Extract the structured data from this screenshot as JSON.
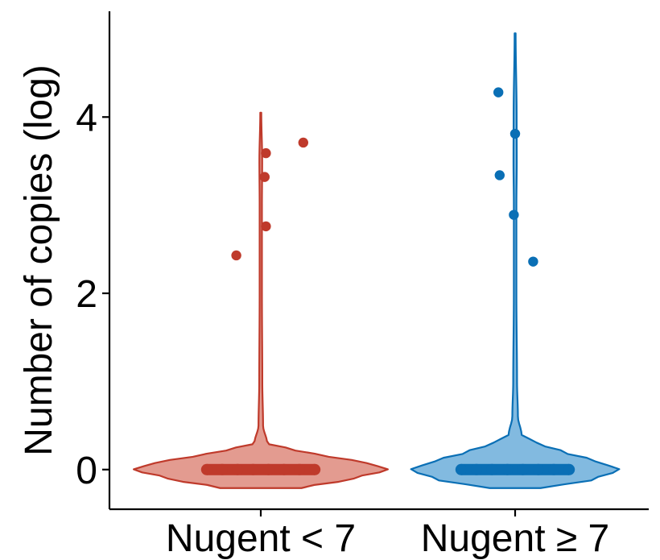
{
  "chart_data": {
    "type": "violin",
    "title": "",
    "xlabel": "",
    "ylabel": "Number of copies (log)",
    "ylim": [
      -0.45,
      5.2
    ],
    "y_ticks": [
      0,
      2,
      4
    ],
    "grid": false,
    "legend": "none",
    "categories": [
      "Nugent < 7",
      "Nugent ≥ 7"
    ],
    "series": [
      {
        "category": "Nugent < 7",
        "color": "#bf3a2b",
        "fill": "#e39b90",
        "violin_range": [
          -0.21,
          4.05
        ],
        "violin_profile": [
          [
            -0.21,
            0.32
          ],
          [
            -0.1,
            0.73
          ],
          [
            0.0,
            1.0
          ],
          [
            0.08,
            0.83
          ],
          [
            0.15,
            0.53
          ],
          [
            0.22,
            0.27
          ],
          [
            0.3,
            0.05
          ],
          [
            0.5,
            0.018
          ],
          [
            1.0,
            0.012
          ],
          [
            2.0,
            0.009
          ],
          [
            3.0,
            0.009
          ],
          [
            3.5,
            0.011
          ],
          [
            4.05,
            0.004
          ]
        ],
        "points": [
          {
            "y": 0.0,
            "jitter": -0.42
          },
          {
            "y": 0.0,
            "jitter": -0.3
          },
          {
            "y": 0.0,
            "jitter": -0.18
          },
          {
            "y": 0.0,
            "jitter": -0.06
          },
          {
            "y": 0.0,
            "jitter": 0.06
          },
          {
            "y": 0.0,
            "jitter": 0.18
          },
          {
            "y": 0.0,
            "jitter": 0.3
          },
          {
            "y": 0.0,
            "jitter": 0.42
          },
          {
            "y": 2.43,
            "jitter": -0.19
          },
          {
            "y": 2.76,
            "jitter": 0.04
          },
          {
            "y": 3.32,
            "jitter": 0.03
          },
          {
            "y": 3.59,
            "jitter": 0.04
          },
          {
            "y": 3.71,
            "jitter": 0.33
          }
        ]
      },
      {
        "category": "Nugent ≥ 7",
        "color": "#0a6fb5",
        "fill": "#82bae0",
        "violin_range": [
          -0.21,
          4.95
        ],
        "violin_profile": [
          [
            -0.21,
            0.2
          ],
          [
            -0.12,
            0.6
          ],
          [
            0.0,
            0.82
          ],
          [
            0.1,
            0.63
          ],
          [
            0.2,
            0.38
          ],
          [
            0.3,
            0.17
          ],
          [
            0.4,
            0.05
          ],
          [
            0.6,
            0.022
          ],
          [
            1.0,
            0.015
          ],
          [
            2.0,
            0.01
          ],
          [
            3.0,
            0.01
          ],
          [
            3.5,
            0.013
          ],
          [
            4.0,
            0.012
          ],
          [
            4.95,
            0.004
          ]
        ],
        "points": [
          {
            "y": 0.0,
            "jitter": -0.42
          },
          {
            "y": 0.0,
            "jitter": -0.3
          },
          {
            "y": 0.0,
            "jitter": -0.18
          },
          {
            "y": 0.0,
            "jitter": -0.06
          },
          {
            "y": 0.0,
            "jitter": 0.06
          },
          {
            "y": 0.0,
            "jitter": 0.18
          },
          {
            "y": 0.0,
            "jitter": 0.3
          },
          {
            "y": 0.0,
            "jitter": 0.42
          },
          {
            "y": 2.36,
            "jitter": 0.14
          },
          {
            "y": 2.89,
            "jitter": -0.01
          },
          {
            "y": 3.34,
            "jitter": -0.12
          },
          {
            "y": 3.81,
            "jitter": 0.0
          },
          {
            "y": 4.28,
            "jitter": -0.13
          }
        ]
      }
    ]
  }
}
